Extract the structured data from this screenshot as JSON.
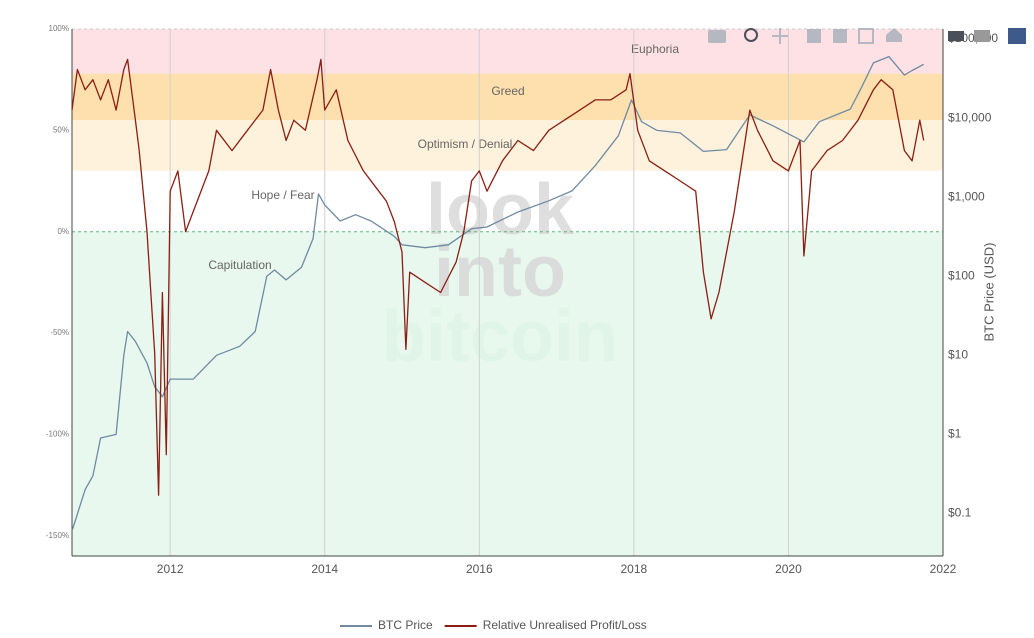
{
  "chart_data": {
    "type": "line",
    "watermark": [
      "look",
      "into",
      "bitcoin"
    ],
    "y2_title": "BTC Price (USD)",
    "xlim": [
      2010.73,
      2022
    ],
    "xticks": [
      2012,
      2014,
      2016,
      2018,
      2020,
      2022
    ],
    "ylim": [
      -160,
      100
    ],
    "yticks": [
      {
        "value": 100,
        "label": "100%"
      },
      {
        "value": 50,
        "label": "50%"
      },
      {
        "value": 0,
        "label": "0%"
      },
      {
        "value": -50,
        "label": "-50%"
      },
      {
        "value": -100,
        "label": "-100%"
      },
      {
        "value": -150,
        "label": "-150%"
      }
    ],
    "y2lim": [
      0.029,
      134000
    ],
    "y2_log": true,
    "y2ticks": [
      {
        "value": 0.1,
        "label": "$0.1"
      },
      {
        "value": 1,
        "label": "$1"
      },
      {
        "value": 10,
        "label": "$10"
      },
      {
        "value": 100,
        "label": "$100"
      },
      {
        "value": 1000,
        "label": "$1,000"
      },
      {
        "value": 10000,
        "label": "$10,000"
      },
      {
        "value": 100000,
        "label": "$100,000"
      }
    ],
    "grid": true,
    "zones": [
      {
        "name": "Euphoria",
        "from": 78,
        "to": 100,
        "color": "#fde1e4"
      },
      {
        "name": "Greed",
        "from": 55,
        "to": 78,
        "color": "#fde0ae"
      },
      {
        "name": "Optimism / Denial",
        "from": 30,
        "to": 55,
        "color": "#fff2dc"
      },
      {
        "name": "Hope / Fear",
        "from": 0,
        "to": 30,
        "color": "#ffffff"
      },
      {
        "name": "Capitulation",
        "from": -160,
        "to": 0,
        "color": "#e8f8ef"
      }
    ],
    "series": [
      {
        "name": "BTC Price",
        "color": "#6f8aa3",
        "axis": "y2",
        "x": [
          2010.73,
          2010.9,
          2011.0,
          2011.1,
          2011.3,
          2011.4,
          2011.45,
          2011.55,
          2011.7,
          2011.8,
          2011.9,
          2012.0,
          2012.3,
          2012.6,
          2012.9,
          2013.1,
          2013.25,
          2013.35,
          2013.5,
          2013.7,
          2013.85,
          2013.92,
          2014.0,
          2014.2,
          2014.4,
          2014.6,
          2014.9,
          2015.0,
          2015.3,
          2015.6,
          2015.9,
          2016.1,
          2016.5,
          2016.9,
          2017.2,
          2017.5,
          2017.8,
          2017.97,
          2018.1,
          2018.3,
          2018.6,
          2018.9,
          2019.2,
          2019.5,
          2019.8,
          2020.2,
          2020.4,
          2020.8,
          2020.95,
          2021.1,
          2021.3,
          2021.5,
          2021.6,
          2021.75
        ],
        "values": [
          0.06,
          0.2,
          0.3,
          0.9,
          1,
          10,
          20,
          15,
          8,
          4,
          3,
          5,
          5,
          10,
          13,
          20,
          100,
          120,
          90,
          130,
          300,
          1100,
          800,
          500,
          600,
          500,
          320,
          250,
          230,
          250,
          400,
          420,
          650,
          900,
          1200,
          2500,
          6000,
          17000,
          9000,
          7000,
          6500,
          3800,
          4000,
          11000,
          8000,
          5000,
          9000,
          13000,
          25000,
          50000,
          60000,
          35000,
          40000,
          48000
        ]
      },
      {
        "name": "Relative Unrealised Profit/Loss",
        "color": "#8b1e12",
        "axis": "y",
        "x": [
          2010.73,
          2010.8,
          2010.9,
          2011.0,
          2011.1,
          2011.2,
          2011.3,
          2011.4,
          2011.45,
          2011.5,
          2011.55,
          2011.6,
          2011.7,
          2011.75,
          2011.8,
          2011.85,
          2011.9,
          2011.95,
          2012.0,
          2012.1,
          2012.2,
          2012.3,
          2012.5,
          2012.6,
          2012.8,
          2013.0,
          2013.2,
          2013.3,
          2013.4,
          2013.5,
          2013.6,
          2013.75,
          2013.9,
          2013.95,
          2014.0,
          2014.15,
          2014.3,
          2014.5,
          2014.7,
          2014.8,
          2014.9,
          2015.0,
          2015.05,
          2015.1,
          2015.3,
          2015.5,
          2015.7,
          2015.8,
          2015.9,
          2016.0,
          2016.1,
          2016.3,
          2016.5,
          2016.7,
          2016.9,
          2017.1,
          2017.3,
          2017.5,
          2017.7,
          2017.9,
          2017.95,
          2018.05,
          2018.2,
          2018.4,
          2018.6,
          2018.8,
          2018.9,
          2019.0,
          2019.1,
          2019.3,
          2019.5,
          2019.6,
          2019.8,
          2020.0,
          2020.15,
          2020.2,
          2020.3,
          2020.5,
          2020.7,
          2020.9,
          2021.1,
          2021.2,
          2021.35,
          2021.5,
          2021.6,
          2021.7,
          2021.75
        ],
        "values": [
          60,
          80,
          70,
          75,
          65,
          75,
          60,
          80,
          85,
          70,
          55,
          40,
          0,
          -30,
          -60,
          -130,
          -30,
          -110,
          20,
          30,
          0,
          10,
          30,
          50,
          40,
          50,
          60,
          80,
          60,
          45,
          55,
          50,
          75,
          85,
          60,
          70,
          45,
          30,
          20,
          15,
          5,
          -10,
          -58,
          -20,
          -25,
          -30,
          -15,
          0,
          25,
          30,
          20,
          35,
          45,
          40,
          50,
          55,
          60,
          65,
          65,
          70,
          78,
          50,
          35,
          30,
          25,
          20,
          -20,
          -43,
          -30,
          10,
          60,
          50,
          35,
          30,
          45,
          -12,
          30,
          40,
          45,
          55,
          70,
          75,
          70,
          40,
          35,
          55,
          45
        ]
      }
    ]
  }
}
